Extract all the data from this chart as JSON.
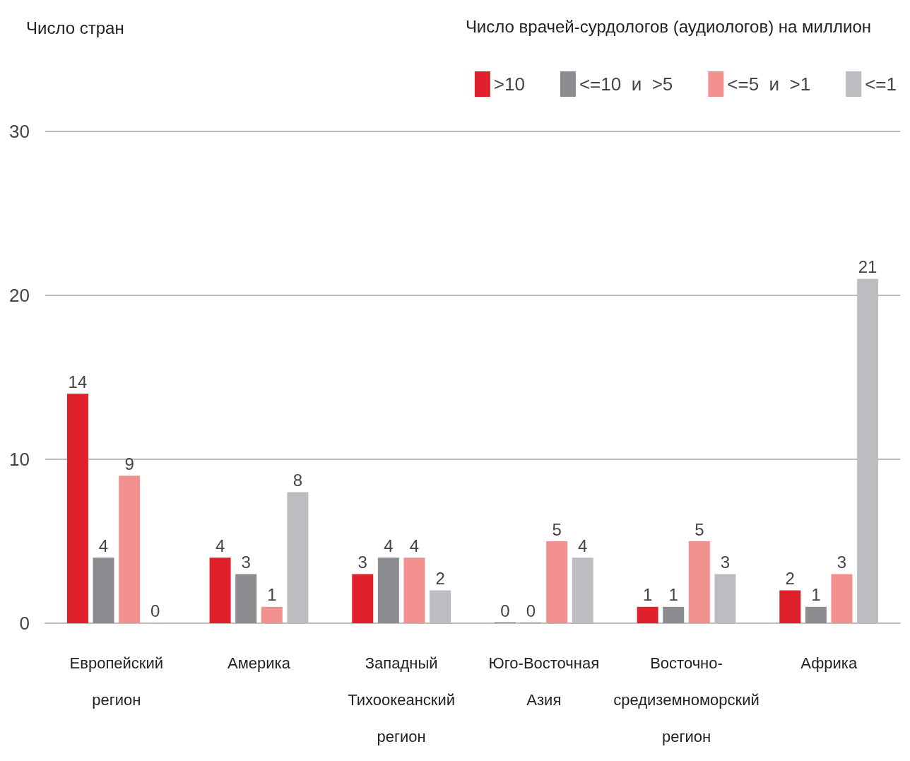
{
  "chart_data": {
    "type": "bar",
    "ylabel": "Число стран",
    "legend_title": "Число врачей-сурдологов (аудиологов) на миллион",
    "categories": [
      "Европейский регион",
      "Америка",
      "Западный Тихоокеанский регион",
      "Юго-Восточная Азия",
      "Восточно-средиземноморский регион",
      "Африка"
    ],
    "series": [
      {
        "name": ">10",
        "color": "#e0202b",
        "values": [
          14,
          4,
          3,
          0,
          1,
          2
        ]
      },
      {
        "name": "<=10  и  >5",
        "color": "#8c8d91",
        "values": [
          4,
          3,
          4,
          0,
          1,
          1
        ]
      },
      {
        "name": "<=5  и  >1",
        "color": "#f29090",
        "values": [
          9,
          1,
          4,
          5,
          5,
          3
        ]
      },
      {
        "name": "<=1",
        "color": "#bcbdc1",
        "values": [
          0,
          8,
          2,
          4,
          3,
          21
        ]
      }
    ],
    "ylim": [
      0,
      30
    ],
    "yticks": [
      0,
      10,
      20,
      30
    ],
    "grid": "y",
    "legend": "top right",
    "data_labels": true
  }
}
